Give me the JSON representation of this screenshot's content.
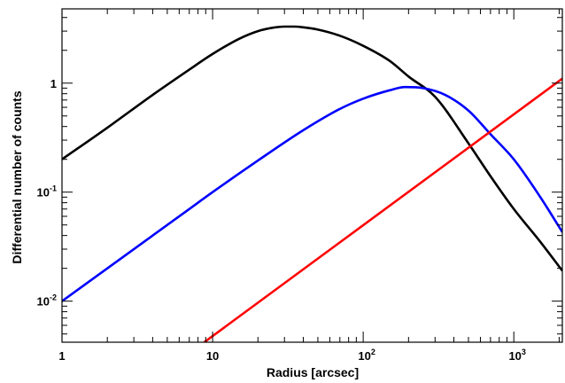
{
  "chart_data": {
    "type": "line",
    "title": "",
    "xlabel": "Radius [arcsec]",
    "ylabel": "Differential number of counts",
    "xscale": "log",
    "yscale": "log",
    "xlim": [
      1,
      2100
    ],
    "ylim": [
      0.0042,
      4.8
    ],
    "grid": false,
    "x_ticks": [
      {
        "value": 1,
        "base": "1",
        "exp": ""
      },
      {
        "value": 10,
        "base": "10",
        "exp": ""
      },
      {
        "value": 100,
        "base": "10",
        "exp": "2"
      },
      {
        "value": 1000,
        "base": "10",
        "exp": "3"
      }
    ],
    "y_ticks": [
      {
        "value": 0.01,
        "base": "10",
        "exp": "-2"
      },
      {
        "value": 0.1,
        "base": "10",
        "exp": "-1"
      },
      {
        "value": 1,
        "base": "1",
        "exp": ""
      }
    ],
    "series": [
      {
        "color": "#000000",
        "x": [
          1,
          2,
          4,
          7,
          10,
          15,
          20,
          25,
          30,
          35,
          40,
          50,
          70,
          100,
          150,
          200,
          300,
          500,
          700,
          1000,
          1500,
          2100
        ],
        "y": [
          0.2,
          0.39,
          0.78,
          1.33,
          1.85,
          2.55,
          3.0,
          3.22,
          3.3,
          3.3,
          3.25,
          3.1,
          2.72,
          2.2,
          1.6,
          1.15,
          0.75,
          0.28,
          0.14,
          0.07,
          0.035,
          0.019
        ]
      },
      {
        "color": "#0000ff",
        "x": [
          1,
          2,
          4,
          7,
          10,
          20,
          40,
          70,
          100,
          150,
          190,
          250,
          350,
          500,
          700,
          1000,
          1500,
          2100
        ],
        "y": [
          0.01,
          0.02,
          0.04,
          0.07,
          0.1,
          0.195,
          0.37,
          0.58,
          0.72,
          0.86,
          0.92,
          0.9,
          0.78,
          0.56,
          0.34,
          0.2,
          0.09,
          0.043
        ]
      },
      {
        "color": "#ff0000",
        "x": [
          8.8,
          2100
        ],
        "y": [
          0.0042,
          1.1
        ]
      }
    ]
  }
}
